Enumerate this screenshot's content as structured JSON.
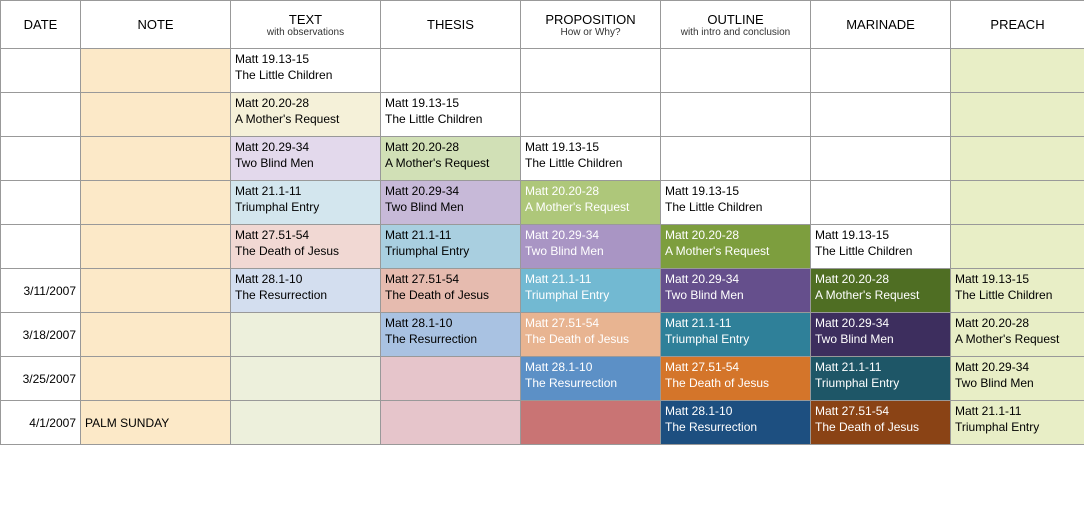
{
  "headers": [
    {
      "main": "DATE",
      "sub": ""
    },
    {
      "main": "NOTE",
      "sub": ""
    },
    {
      "main": "TEXT",
      "sub": "with observations"
    },
    {
      "main": "THESIS",
      "sub": ""
    },
    {
      "main": "PROPOSITION",
      "sub": "How or Why?"
    },
    {
      "main": "OUTLINE",
      "sub": "with intro and conclusion"
    },
    {
      "main": "MARINADE",
      "sub": ""
    },
    {
      "main": "PREACH",
      "sub": ""
    }
  ],
  "column_bg": {
    "date": "#ffffff",
    "note": "#fce9c8",
    "text": "#ffffff",
    "thesis": "#ffffff",
    "prop": "#ffffff",
    "outline": "#ffffff",
    "marinade": "#ffffff",
    "preach": "#e8eec6"
  },
  "items": {
    "a": {
      "ref": "Matt 19.13-15",
      "title": "The Little Children"
    },
    "b": {
      "ref": "Matt 20.20-28",
      "title": "A Mother's Request"
    },
    "c": {
      "ref": "Matt 20.29-34",
      "title": "Two Blind Men"
    },
    "d": {
      "ref": "Matt 21.1-11",
      "title": "Triumphal Entry"
    },
    "e": {
      "ref": "Matt 27.51-54",
      "title": "The Death of Jesus"
    },
    "f": {
      "ref": "Matt 28.1-10",
      "title": "The Resurrection"
    }
  },
  "rows": [
    {
      "date": "",
      "note": "",
      "cells": [
        {
          "item": "a",
          "bg": "#ffffff",
          "white": false
        },
        {
          "item": null
        },
        {
          "item": null
        },
        {
          "item": null
        },
        {
          "item": null
        },
        {
          "item": null
        }
      ]
    },
    {
      "date": "",
      "note": "",
      "cells": [
        {
          "item": "b",
          "bg": "#f5f1d9",
          "white": false
        },
        {
          "item": "a",
          "bg": "#ffffff",
          "white": false
        },
        {
          "item": null
        },
        {
          "item": null
        },
        {
          "item": null
        },
        {
          "item": null
        }
      ]
    },
    {
      "date": "",
      "note": "",
      "cells": [
        {
          "item": "c",
          "bg": "#e3d9ec",
          "white": false
        },
        {
          "item": "b",
          "bg": "#d1e0b6",
          "white": false
        },
        {
          "item": "a",
          "bg": "#ffffff",
          "white": false
        },
        {
          "item": null
        },
        {
          "item": null
        },
        {
          "item": null
        }
      ]
    },
    {
      "date": "",
      "note": "",
      "cells": [
        {
          "item": "d",
          "bg": "#d3e6ee",
          "white": false
        },
        {
          "item": "c",
          "bg": "#c7b9d8",
          "white": false
        },
        {
          "item": "b",
          "bg": "#aec77a",
          "white": true
        },
        {
          "item": "a",
          "bg": "#ffffff",
          "white": false
        },
        {
          "item": null
        },
        {
          "item": null
        }
      ]
    },
    {
      "date": "",
      "note": "",
      "cells": [
        {
          "item": "e",
          "bg": "#f1d8d3",
          "white": false
        },
        {
          "item": "d",
          "bg": "#a9cfe0",
          "white": false
        },
        {
          "item": "c",
          "bg": "#a995c4",
          "white": true
        },
        {
          "item": "b",
          "bg": "#7d9e3e",
          "white": true
        },
        {
          "item": "a",
          "bg": "#ffffff",
          "white": false
        },
        {
          "item": null
        }
      ]
    },
    {
      "date": "3/11/2007",
      "note": "",
      "cells": [
        {
          "item": "f",
          "bg": "#d3deef",
          "white": false
        },
        {
          "item": "e",
          "bg": "#e6bbaf",
          "white": false
        },
        {
          "item": "d",
          "bg": "#72b9d2",
          "white": true
        },
        {
          "item": "c",
          "bg": "#654f8c",
          "white": true
        },
        {
          "item": "b",
          "bg": "#4f6e23",
          "white": true
        },
        {
          "item": "a",
          "bg": "#e8eec6",
          "white": false
        }
      ]
    },
    {
      "date": "3/18/2007",
      "note": "",
      "cells": [
        {
          "item": null,
          "bg": "#edf0dc"
        },
        {
          "item": "f",
          "bg": "#a9c2e2",
          "white": false
        },
        {
          "item": "e",
          "bg": "#e8b491",
          "white": true
        },
        {
          "item": "d",
          "bg": "#2f8099",
          "white": true
        },
        {
          "item": "c",
          "bg": "#3d2e5e",
          "white": true
        },
        {
          "item": "b",
          "bg": "#e8eec6",
          "white": false
        }
      ]
    },
    {
      "date": "3/25/2007",
      "note": "",
      "cells": [
        {
          "item": null,
          "bg": "#edf0dc"
        },
        {
          "item": null,
          "bg": "#e6c5cb"
        },
        {
          "item": "f",
          "bg": "#5c90c6",
          "white": true
        },
        {
          "item": "e",
          "bg": "#d4752a",
          "white": true
        },
        {
          "item": "d",
          "bg": "#1e5667",
          "white": true
        },
        {
          "item": "c",
          "bg": "#e8eec6",
          "white": false
        }
      ]
    },
    {
      "date": "4/1/2007",
      "note": "PALM SUNDAY",
      "cells": [
        {
          "item": null,
          "bg": "#edf0dc"
        },
        {
          "item": null,
          "bg": "#e6c5cb"
        },
        {
          "item": null,
          "bg": "#c97474"
        },
        {
          "item": "f",
          "bg": "#1d4f80",
          "white": true
        },
        {
          "item": "e",
          "bg": "#8a4315",
          "white": true
        },
        {
          "item": "d",
          "bg": "#e8eec6",
          "white": false
        }
      ]
    }
  ]
}
